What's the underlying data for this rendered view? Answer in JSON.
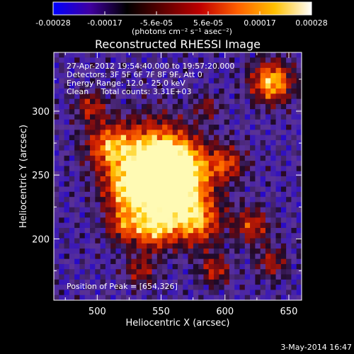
{
  "chart_data": {
    "type": "heatmap",
    "title": "Reconstructed RHESSI Image",
    "xlabel": "Heliocentric X (arcsec)",
    "ylabel": "Heliocentric Y (arcsec)",
    "xlim": [
      466,
      660
    ],
    "ylim": [
      152,
      346
    ],
    "x_ticks": [
      500,
      550,
      600,
      650
    ],
    "y_ticks": [
      200,
      250,
      300
    ],
    "colorbar": {
      "min": -0.00028,
      "max": 0.00028,
      "tick_labels": [
        "-0.00028",
        "-0.00017",
        "-5.6e-05",
        "5.6e-05",
        "0.00017",
        "0.00028"
      ],
      "units_label": "(photons cm⁻² s⁻¹ asec⁻²)",
      "colormap": [
        "#0000ff",
        "#4000a0",
        "#000000",
        "#600000",
        "#c00000",
        "#ff6000",
        "#ffc000",
        "#ffffff"
      ]
    },
    "annotations": [
      "27-Apr-2012 19:54:40.000 to 19:57:20.000",
      "Detectors: 3F 5F 6F 7F 8F 9F, Att 0",
      "Energy Range: 12.0 - 25.0 keV",
      "Clean     Total counts: 3.31E+03"
    ],
    "peak_label": "Position of Peak = [654,326]",
    "peak": [
      654,
      326
    ],
    "timestamp": "3-May-2014 16:47"
  }
}
